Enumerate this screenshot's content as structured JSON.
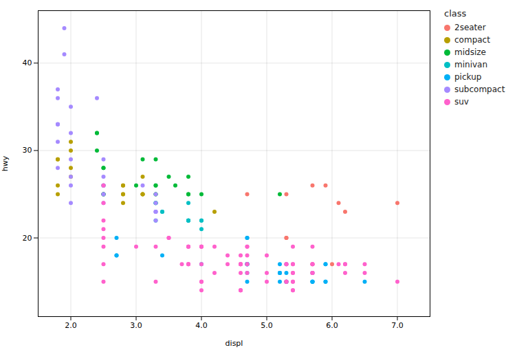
{
  "chart_data": {
    "type": "scatter",
    "title": "",
    "xlabel": "displ",
    "ylabel": "hwy",
    "legend_title": "class",
    "legend": "right",
    "grid": true,
    "xlim": [
      1.5,
      7.5
    ],
    "ylim": [
      11,
      46
    ],
    "xticks": [
      2,
      3,
      4,
      5,
      6,
      7
    ],
    "yticks": [
      20,
      30,
      40
    ],
    "series": [
      {
        "name": "2seater",
        "color": "#F8766D",
        "x": [
          5.3,
          5.3,
          5.3,
          5.7,
          6.0,
          5.7,
          5.9,
          4.7,
          6.1,
          6.2,
          7.0,
          5.3
        ],
        "values": [
          20,
          15,
          20,
          17,
          17,
          26,
          26,
          25,
          24,
          23,
          24,
          25
        ]
      },
      {
        "name": "compact",
        "color": "#B79F00",
        "x": [
          1.8,
          1.8,
          2.0,
          2.0,
          2.8,
          2.8,
          3.1,
          1.8,
          1.8,
          2.0,
          2.0,
          2.8,
          2.8,
          3.1,
          3.1,
          2.8,
          3.1,
          4.2
        ],
        "values": [
          29,
          29,
          31,
          30,
          26,
          26,
          27,
          26,
          25,
          28,
          27,
          25,
          25,
          25,
          25,
          24,
          25,
          23
        ]
      },
      {
        "name": "midsize",
        "color": "#00BA38",
        "x": [
          2.4,
          2.4,
          3.1,
          3.5,
          3.6,
          2.4,
          3.0,
          3.3,
          3.3,
          3.3,
          3.3,
          3.8,
          3.8,
          3.8,
          4.0,
          2.5,
          2.5,
          2.5,
          2.5,
          2.5,
          2.5,
          3.3,
          2.5,
          2.5,
          3.3,
          5.2
        ],
        "values": [
          32,
          32,
          29,
          27,
          26,
          30,
          26,
          29,
          26,
          26,
          25,
          25,
          27,
          25,
          25,
          28,
          25,
          25,
          25,
          28,
          25,
          25,
          25,
          26,
          24,
          25
        ]
      },
      {
        "name": "minivan",
        "color": "#00BFC4",
        "x": [
          3.4,
          3.4,
          3.8,
          3.8,
          3.8,
          4.0,
          4.0,
          3.3,
          3.8,
          3.3,
          3.3,
          3.8,
          4.0
        ],
        "values": [
          23,
          23,
          22,
          22,
          22,
          22,
          21,
          24,
          24,
          24,
          22,
          22,
          22
        ]
      },
      {
        "name": "pickup",
        "color": "#00B0F6",
        "x": [
          4.7,
          4.7,
          4.7,
          5.2,
          5.7,
          5.9,
          4.7,
          4.7,
          4.7,
          4.7,
          4.7,
          5.2,
          5.7,
          5.9,
          2.7,
          2.7,
          2.7,
          3.4,
          4.0,
          4.7,
          4.7,
          5.2,
          5.2,
          5.7,
          5.9,
          4.7,
          5.2,
          5.7,
          5.9,
          5.3,
          5.3,
          5.3,
          5.3,
          5.3,
          5.7,
          6.5
        ],
        "values": [
          20,
          17,
          17,
          16,
          16,
          17,
          17,
          17,
          20,
          17,
          15,
          17,
          15,
          15,
          20,
          18,
          18,
          18,
          17,
          17,
          17,
          16,
          16,
          15,
          15,
          16,
          15,
          15,
          17,
          15,
          15,
          17,
          16,
          15,
          15,
          15
        ]
      },
      {
        "name": "subcompact",
        "color": "#A58AFF",
        "x": [
          2.4,
          1.8,
          1.8,
          1.8,
          2.5,
          2.5,
          2.5,
          2.5,
          3.1,
          1.9,
          1.9,
          2.0,
          2.0,
          1.8,
          2.0,
          2.5,
          2.5,
          3.3,
          1.8,
          1.8,
          1.8,
          2.0,
          2.0,
          2.0,
          2.5,
          2.5,
          3.3,
          3.3,
          3.3,
          3.3,
          3.3
        ],
        "values": [
          36,
          37,
          36,
          33,
          29,
          27,
          26,
          26,
          26,
          44,
          41,
          35,
          32,
          28,
          26,
          26,
          24,
          23,
          33,
          33,
          31,
          29,
          27,
          24,
          25,
          25,
          25,
          23,
          24,
          22,
          23
        ]
      },
      {
        "name": "suv",
        "color": "#FF61CC",
        "x": [
          3.8,
          3.8,
          3.8,
          5.7,
          5.7,
          4.7,
          4.7,
          4.7,
          4.7,
          4.7,
          5.7,
          5.7,
          5.7,
          6.2,
          6.2,
          6.2,
          7.0,
          5.3,
          5.3,
          4.0,
          4.0,
          4.6,
          4.6,
          4.6,
          4.6,
          5.4,
          5.4,
          5.4,
          5.4,
          4.6,
          5.0,
          5.0,
          5.4,
          5.4,
          3.8,
          3.8,
          3.8,
          4.0,
          4.2,
          4.4,
          4.6,
          3.0,
          3.7,
          4.0,
          4.0,
          4.6,
          5.4,
          4.7,
          5.4,
          5.7,
          6.5,
          6.1,
          3.5,
          3.5,
          4.2,
          4.4,
          4.6,
          5.4,
          5.0,
          5.3,
          5.3,
          5.3,
          5.3,
          5.7,
          6.5,
          2.5,
          2.5,
          2.5,
          2.5,
          2.5,
          2.5,
          4.0,
          4.0,
          3.3,
          2.5,
          3.3,
          2.5,
          4.6
        ],
        "values": [
          17,
          17,
          17,
          16,
          16,
          18,
          17,
          19,
          17,
          19,
          19,
          17,
          17,
          17,
          16,
          17,
          15,
          17,
          15,
          19,
          19,
          17,
          16,
          14,
          14,
          14,
          14,
          16,
          19,
          18,
          16,
          18,
          17,
          16,
          19,
          19,
          19,
          19,
          19,
          18,
          17,
          19,
          17,
          15,
          17,
          17,
          15,
          16,
          15,
          16,
          16,
          17,
          20,
          20,
          16,
          17,
          17,
          17,
          15,
          17,
          15,
          15,
          17,
          17,
          17,
          26,
          24,
          17,
          21,
          19,
          20,
          15,
          14,
          15,
          22,
          19,
          15,
          14
        ]
      }
    ]
  }
}
